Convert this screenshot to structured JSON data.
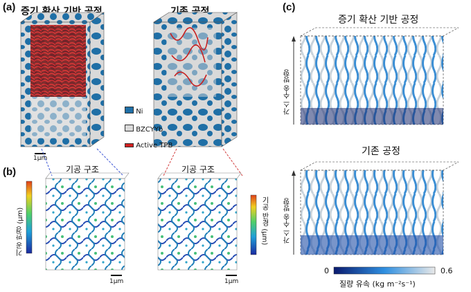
{
  "panels": {
    "a": {
      "label": "(a)",
      "left_title": "증기 확산 기반 공정",
      "right_title": "기존 공정",
      "scale_bar": "1μm",
      "legend": [
        {
          "label": "Ni",
          "color": "#1f6fa6"
        },
        {
          "label": "BZCYYb",
          "color": "#d9d9d9"
        },
        {
          "label": "Active TPB",
          "color": "#d21f1f"
        }
      ]
    },
    "b": {
      "label": "(b)",
      "left_title": "기공 구조",
      "right_title": "기공 구조",
      "left_colorbar_label": "기공 반경 (μm)",
      "right_colorbar_label": "기공 반경 (μm)",
      "scale_bar_left": "1μm",
      "scale_bar_right": "1μm"
    },
    "c": {
      "label": "(c)",
      "top_title": "증기 확산 기반 공정",
      "bottom_title": "기존 공정",
      "axis_label_top": "가스 수송 방향",
      "axis_label_bottom": "가스 수송 방향",
      "colorbar": {
        "min": "0",
        "max": "0.6",
        "label": "질량 유속 (kg m⁻²s⁻¹)",
        "start_color": "#0a1a6e",
        "mid_color": "#2f8fe0",
        "end_color": "#e8e8e8"
      }
    }
  },
  "colors": {
    "ni": "#1f6fa6",
    "bzcyyb": "#d9d9d9",
    "tpb": "#d21f1f",
    "dashed_blue": "#3b55d6",
    "dashed_red": "#d23a3a"
  }
}
